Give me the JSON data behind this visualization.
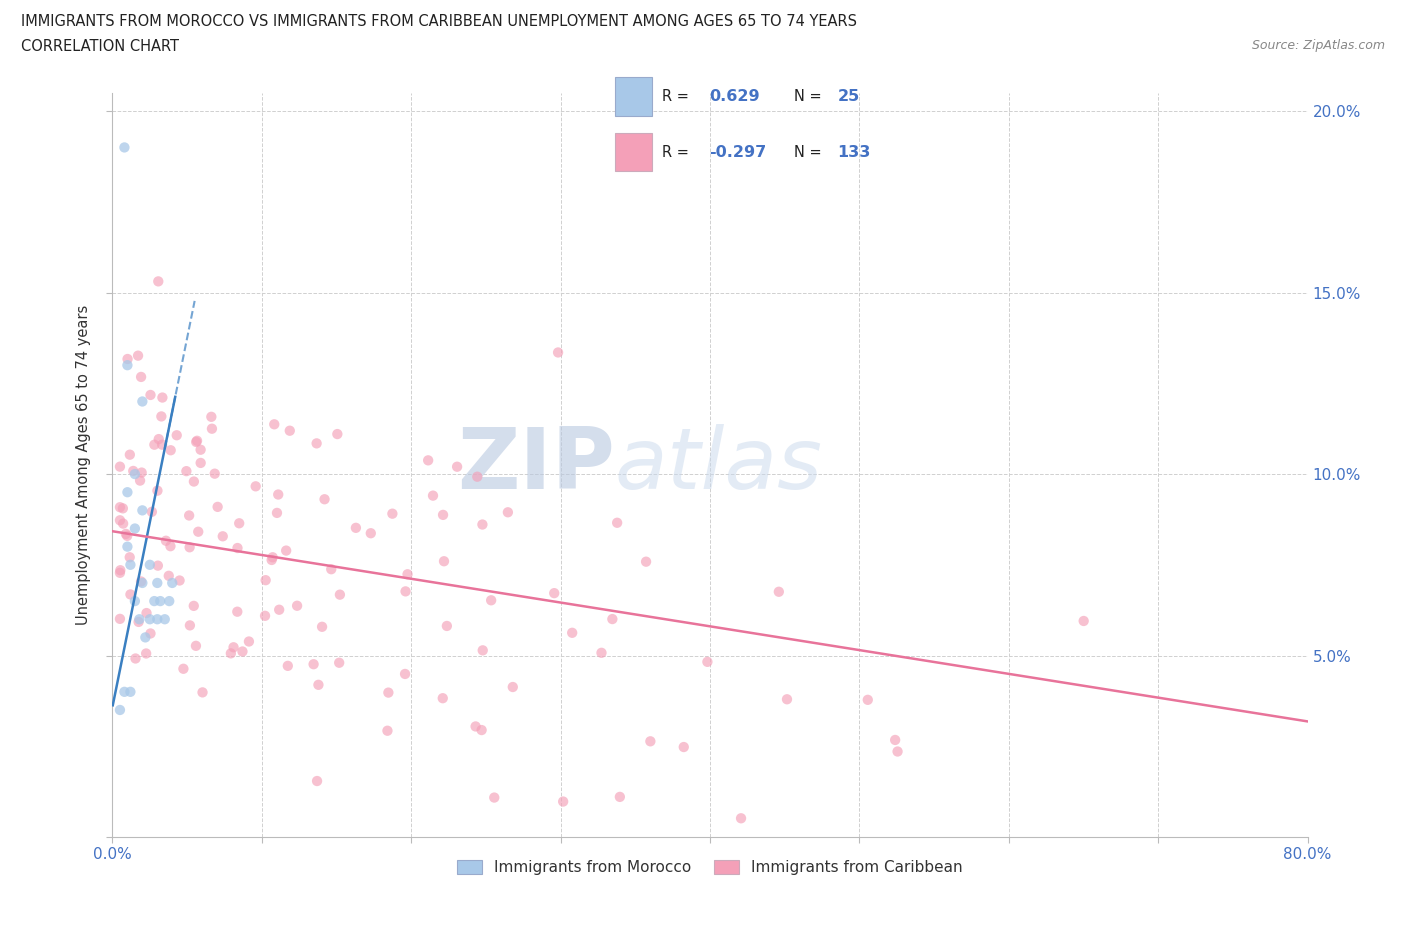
{
  "title_line1": "IMMIGRANTS FROM MOROCCO VS IMMIGRANTS FROM CARIBBEAN UNEMPLOYMENT AMONG AGES 65 TO 74 YEARS",
  "title_line2": "CORRELATION CHART",
  "source_text": "Source: ZipAtlas.com",
  "ylabel": "Unemployment Among Ages 65 to 74 years",
  "xlim": [
    0.0,
    0.8
  ],
  "ylim": [
    0.0,
    0.205
  ],
  "morocco_color": "#a8c8e8",
  "caribbean_color": "#f4a0b8",
  "morocco_R": 0.629,
  "morocco_N": 25,
  "caribbean_R": -0.297,
  "caribbean_N": 133,
  "morocco_line_color": "#3a7fc1",
  "caribbean_line_color": "#e8739a",
  "watermark_color": "#d0ddf0",
  "background_color": "#ffffff",
  "grid_color": "#d0d0d0",
  "legend_box_color": "#e8eef8",
  "legend_border_color": "#b0c0d8",
  "tick_color": "#4472c4",
  "label_color": "#333333"
}
